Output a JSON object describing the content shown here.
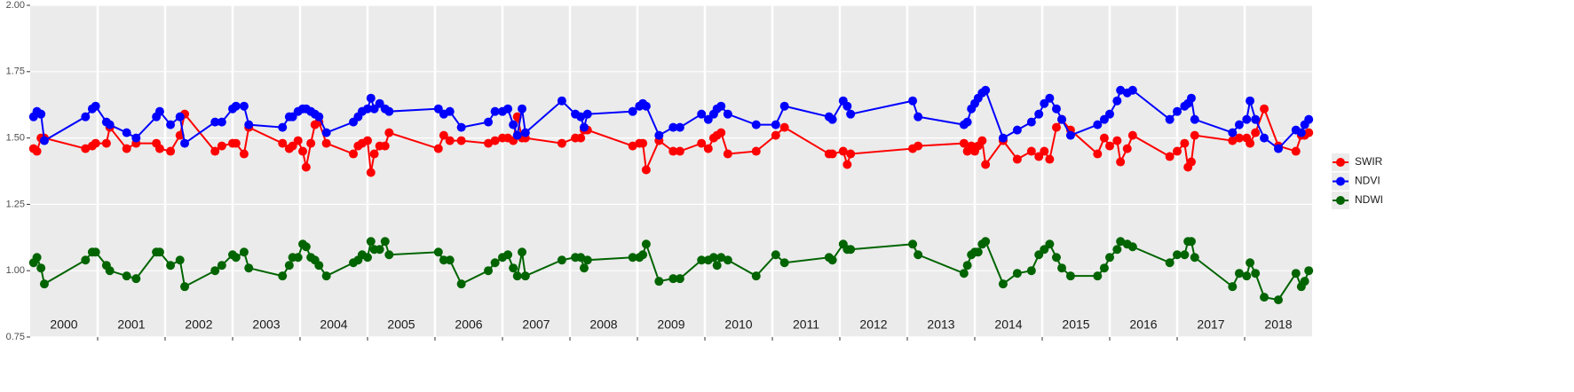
{
  "chart_data": {
    "type": "line",
    "x": [
      2000.05,
      2000.1,
      2000.16,
      2000.21,
      2000.82,
      2000.92,
      2000.97,
      2001.13,
      2001.18,
      2001.43,
      2001.57,
      2001.87,
      2001.92,
      2002.08,
      2002.22,
      2002.29,
      2002.74,
      2002.84,
      2003.0,
      2003.05,
      2003.17,
      2003.24,
      2003.74,
      2003.84,
      2003.89,
      2003.97,
      2004.04,
      2004.09,
      2004.16,
      2004.22,
      2004.28,
      2004.39,
      2004.79,
      2004.86,
      2004.92,
      2005.0,
      2005.05,
      2005.1,
      2005.18,
      2005.26,
      2005.32,
      2006.05,
      2006.13,
      2006.22,
      2006.39,
      2006.79,
      2006.89,
      2007.0,
      2007.08,
      2007.16,
      2007.22,
      2007.29,
      2007.34,
      2007.88,
      2008.08,
      2008.16,
      2008.21,
      2008.26,
      2008.93,
      2009.03,
      2009.08,
      2009.13,
      2009.32,
      2009.53,
      2009.63,
      2009.95,
      2010.05,
      2010.13,
      2010.18,
      2010.24,
      2010.34,
      2010.76,
      2011.05,
      2011.18,
      2011.84,
      2011.89,
      2012.05,
      2012.11,
      2012.16,
      2013.08,
      2013.16,
      2013.84,
      2013.89,
      2013.95,
      2014.0,
      2014.05,
      2014.11,
      2014.16,
      2014.42,
      2014.63,
      2014.84,
      2014.95,
      2015.03,
      2015.11,
      2015.21,
      2015.29,
      2015.42,
      2015.82,
      2015.92,
      2016.0,
      2016.11,
      2016.16,
      2016.26,
      2016.34,
      2016.89,
      2017.0,
      2017.11,
      2017.16,
      2017.21,
      2017.26,
      2017.82,
      2017.92,
      2018.03,
      2018.08,
      2018.16,
      2018.29,
      2018.5,
      2018.76,
      2018.84,
      2018.89,
      2018.95
    ],
    "series": [
      {
        "name": "SWIR",
        "color": "#ff0000",
        "values": [
          1.46,
          1.45,
          1.5,
          1.5,
          1.46,
          1.47,
          1.48,
          1.48,
          1.54,
          1.46,
          1.48,
          1.48,
          1.46,
          1.45,
          1.51,
          1.59,
          1.45,
          1.47,
          1.48,
          1.48,
          1.44,
          1.54,
          1.48,
          1.46,
          1.47,
          1.49,
          1.45,
          1.39,
          1.48,
          1.55,
          1.56,
          1.48,
          1.44,
          1.47,
          1.48,
          1.49,
          1.37,
          1.44,
          1.47,
          1.47,
          1.52,
          1.46,
          1.51,
          1.49,
          1.49,
          1.48,
          1.49,
          1.5,
          1.5,
          1.49,
          1.58,
          1.5,
          1.5,
          1.48,
          1.5,
          1.5,
          1.53,
          1.53,
          1.47,
          1.48,
          1.48,
          1.38,
          1.49,
          1.45,
          1.45,
          1.48,
          1.46,
          1.5,
          1.51,
          1.52,
          1.44,
          1.45,
          1.51,
          1.54,
          1.44,
          1.44,
          1.45,
          1.4,
          1.44,
          1.46,
          1.47,
          1.48,
          1.45,
          1.47,
          1.45,
          1.47,
          1.49,
          1.4,
          1.49,
          1.42,
          1.45,
          1.43,
          1.45,
          1.42,
          1.54,
          1.57,
          1.53,
          1.44,
          1.5,
          1.47,
          1.49,
          1.41,
          1.46,
          1.51,
          1.43,
          1.45,
          1.48,
          1.39,
          1.41,
          1.51,
          1.49,
          1.5,
          1.5,
          1.48,
          1.52,
          1.61,
          1.47,
          1.45,
          1.51,
          1.51,
          1.52
        ]
      },
      {
        "name": "NDVI",
        "color": "#0000ff",
        "values": [
          1.58,
          1.6,
          1.59,
          1.49,
          1.58,
          1.61,
          1.62,
          1.56,
          1.55,
          1.52,
          1.5,
          1.58,
          1.6,
          1.55,
          1.58,
          1.48,
          1.56,
          1.56,
          1.61,
          1.62,
          1.62,
          1.55,
          1.54,
          1.58,
          1.58,
          1.6,
          1.61,
          1.61,
          1.6,
          1.59,
          1.58,
          1.52,
          1.56,
          1.58,
          1.6,
          1.61,
          1.65,
          1.61,
          1.63,
          1.61,
          1.6,
          1.61,
          1.59,
          1.6,
          1.54,
          1.56,
          1.6,
          1.6,
          1.61,
          1.55,
          1.51,
          1.61,
          1.52,
          1.64,
          1.59,
          1.58,
          1.54,
          1.59,
          1.6,
          1.62,
          1.63,
          1.62,
          1.51,
          1.54,
          1.54,
          1.59,
          1.57,
          1.59,
          1.61,
          1.62,
          1.59,
          1.55,
          1.55,
          1.62,
          1.58,
          1.57,
          1.64,
          1.62,
          1.59,
          1.64,
          1.58,
          1.55,
          1.56,
          1.61,
          1.63,
          1.65,
          1.67,
          1.68,
          1.5,
          1.53,
          1.56,
          1.59,
          1.63,
          1.65,
          1.61,
          1.57,
          1.51,
          1.55,
          1.57,
          1.59,
          1.64,
          1.68,
          1.67,
          1.68,
          1.57,
          1.6,
          1.62,
          1.63,
          1.65,
          1.57,
          1.52,
          1.55,
          1.57,
          1.64,
          1.57,
          1.5,
          1.46,
          1.53,
          1.52,
          1.55,
          1.57
        ]
      },
      {
        "name": "NDWI",
        "color": "#006400",
        "values": [
          1.03,
          1.05,
          1.01,
          0.95,
          1.04,
          1.07,
          1.07,
          1.02,
          1.0,
          0.98,
          0.97,
          1.07,
          1.07,
          1.02,
          1.04,
          0.94,
          1.0,
          1.02,
          1.06,
          1.05,
          1.07,
          1.01,
          0.98,
          1.02,
          1.05,
          1.05,
          1.1,
          1.09,
          1.05,
          1.04,
          1.02,
          0.98,
          1.03,
          1.04,
          1.06,
          1.05,
          1.11,
          1.08,
          1.08,
          1.11,
          1.06,
          1.07,
          1.04,
          1.04,
          0.95,
          1.0,
          1.03,
          1.05,
          1.06,
          1.01,
          0.98,
          1.07,
          0.98,
          1.04,
          1.05,
          1.05,
          1.01,
          1.04,
          1.05,
          1.05,
          1.06,
          1.1,
          0.96,
          0.97,
          0.97,
          1.04,
          1.04,
          1.05,
          1.02,
          1.05,
          1.04,
          0.98,
          1.06,
          1.03,
          1.05,
          1.04,
          1.1,
          1.08,
          1.08,
          1.1,
          1.06,
          0.99,
          1.02,
          1.06,
          1.07,
          1.07,
          1.1,
          1.11,
          0.95,
          0.99,
          1.0,
          1.06,
          1.08,
          1.1,
          1.05,
          1.01,
          0.98,
          0.98,
          1.01,
          1.05,
          1.08,
          1.11,
          1.1,
          1.09,
          1.03,
          1.06,
          1.06,
          1.11,
          1.11,
          1.05,
          0.94,
          0.99,
          0.98,
          1.03,
          0.99,
          0.9,
          0.89,
          0.99,
          0.94,
          0.96,
          1.0
        ]
      }
    ],
    "year_labels": [
      "2000",
      "2001",
      "2002",
      "2003",
      "2004",
      "2005",
      "2006",
      "2007",
      "2008",
      "2009",
      "2010",
      "2011",
      "2012",
      "2013",
      "2014",
      "2015",
      "2016",
      "2017",
      "2018"
    ],
    "xlim": [
      2000,
      2019
    ],
    "xticks": [
      2001,
      2002,
      2003,
      2004,
      2005,
      2006,
      2007,
      2008,
      2009,
      2010,
      2011,
      2012,
      2013,
      2014,
      2015,
      2016,
      2017,
      2018
    ],
    "ylim": [
      0.75,
      2.0
    ],
    "yticks": [
      {
        "value": 0.75,
        "label": "0.75"
      },
      {
        "value": 1.0,
        "label": "1.00"
      },
      {
        "value": 1.25,
        "label": "1.25"
      },
      {
        "value": 1.5,
        "label": "1.50"
      },
      {
        "value": 1.75,
        "label": "1.75"
      },
      {
        "value": 2.0,
        "label": "2.00"
      }
    ],
    "grid": true,
    "legend": "right"
  }
}
